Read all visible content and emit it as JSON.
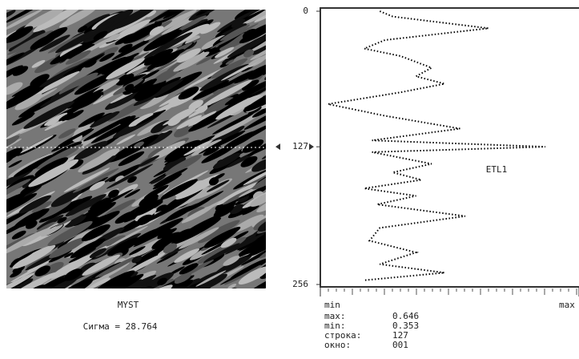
{
  "chart_data": {
    "type": "line",
    "image_caption": "MYST",
    "sigma": "Сигма = 28.764",
    "series_label": "ETL1",
    "rows": [
      0,
      5,
      16,
      27,
      35,
      42,
      53,
      61,
      68,
      76,
      87,
      98,
      110,
      121,
      127,
      132,
      143,
      151,
      158,
      166,
      173,
      181,
      192,
      203,
      215,
      226,
      237,
      245,
      252
    ],
    "values": [
      0.23,
      0.28,
      0.65,
      0.25,
      0.17,
      0.31,
      0.43,
      0.37,
      0.48,
      0.31,
      0.03,
      0.25,
      0.54,
      0.2,
      0.87,
      0.2,
      0.43,
      0.28,
      0.39,
      0.17,
      0.37,
      0.22,
      0.56,
      0.23,
      0.19,
      0.37,
      0.23,
      0.48,
      0.17
    ],
    "color": "#000000",
    "ylim": [
      0,
      256
    ],
    "yticks": [
      0,
      127,
      256
    ],
    "xlim": [
      0,
      1
    ],
    "xticks": [
      {
        "value": 0,
        "label": "min"
      },
      {
        "value": 1,
        "label": "max"
      }
    ],
    "stats": [
      [
        "max:",
        "0.646"
      ],
      [
        "min:",
        "0.353"
      ],
      [
        "строка:",
        "127"
      ],
      [
        "окно:",
        "001"
      ]
    ]
  }
}
